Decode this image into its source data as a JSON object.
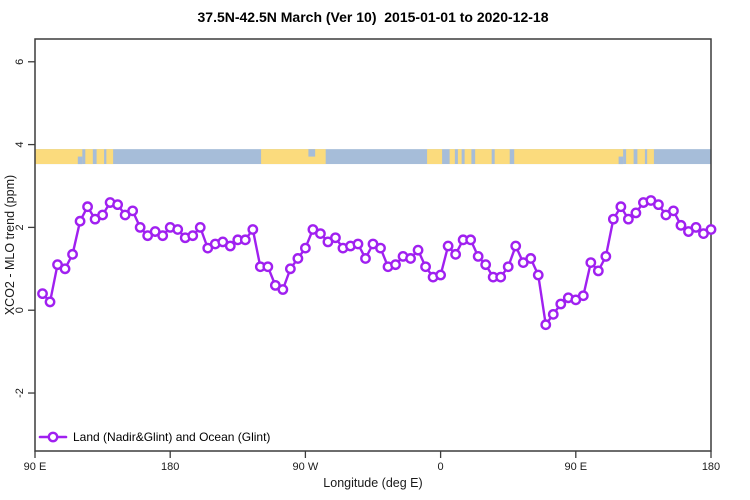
{
  "header": {
    "title": "37.5N-42.5N March (Ver 10)  2015-01-01 to 2020-12-18"
  },
  "axes": {
    "xlabel": "Longitude (deg E)",
    "ylabel": "XCO2 - MLO trend (ppm)"
  },
  "legend": {
    "label": "Land (Nadir&Glint) and Ocean (Glint)"
  },
  "colors": {
    "series_line": "#A020F0",
    "marker_fill": "#FFFFFF",
    "land": "#FBDB7D",
    "ocean": "#A6BDD9",
    "frame": "#3C3C3C",
    "text": "#1A1A1A"
  },
  "chart_data": {
    "type": "line",
    "title": "37.5N-42.5N March (Ver 10)  2015-01-01 to 2020-12-18",
    "xlabel": "Longitude (deg E)",
    "ylabel": "XCO2 - MLO trend (ppm)",
    "xlim": [
      90,
      540
    ],
    "ylim": [
      -3.4,
      6.55
    ],
    "grid": false,
    "legend_position": "inside-bottom-left",
    "xticks": {
      "values": [
        90,
        180,
        270,
        360,
        450,
        540
      ],
      "labels": [
        "90 E",
        "180",
        "90 W",
        "0",
        "90 E",
        "180"
      ]
    },
    "yticks": {
      "values": [
        -2,
        0,
        2,
        4,
        6
      ],
      "labels": [
        "-2",
        "0",
        "2",
        "4",
        "6"
      ]
    },
    "map_band": {
      "description": "land-ocean mask strip for latitude band 37.5N-42.5N",
      "value_range": [
        3.53,
        3.89
      ],
      "land_segments": [
        [
          90,
          121.5
        ],
        [
          123.5,
          128.5
        ],
        [
          131,
          136
        ],
        [
          137.5,
          142
        ],
        [
          240.5,
          283.5
        ],
        [
          351,
          361
        ],
        [
          366,
          369.5
        ],
        [
          371.5,
          374
        ],
        [
          376,
          380.5
        ],
        [
          383,
          394
        ],
        [
          396,
          406
        ],
        [
          409,
          481.5
        ],
        [
          483.5,
          488.5
        ],
        [
          491,
          496
        ],
        [
          497.5,
          502
        ]
      ],
      "ocean_notches": [
        {
          "range": [
            118.5,
            121.5
          ],
          "side": "bottom"
        },
        {
          "range": [
            272,
            276.5
          ],
          "side": "top"
        },
        {
          "range": [
            478.5,
            481.5
          ],
          "side": "bottom"
        }
      ]
    },
    "series": [
      {
        "name": "Land (Nadir&Glint) and Ocean (Glint)",
        "marker": "open-circle",
        "x": [
          95,
          100,
          105,
          110,
          115,
          120,
          125,
          130,
          135,
          140,
          145,
          150,
          155,
          160,
          165,
          170,
          175,
          180,
          185,
          190,
          195,
          200,
          205,
          210,
          215,
          220,
          225,
          230,
          235,
          240,
          245,
          250,
          255,
          260,
          265,
          270,
          275,
          280,
          285,
          290,
          295,
          300,
          305,
          310,
          315,
          320,
          325,
          330,
          335,
          340,
          345,
          350,
          355,
          360,
          365,
          370,
          375,
          380,
          385,
          390,
          395,
          400,
          405,
          410,
          415,
          420,
          425,
          430,
          435,
          440,
          445,
          450,
          455,
          460,
          465,
          470,
          475,
          480,
          485,
          490,
          495,
          500,
          505,
          510,
          515,
          520,
          525,
          530,
          535,
          540
        ],
        "y": [
          0.4,
          0.2,
          1.1,
          1.0,
          1.35,
          2.15,
          2.5,
          2.2,
          2.3,
          2.6,
          2.55,
          2.3,
          2.4,
          2.0,
          1.8,
          1.9,
          1.8,
          2.0,
          1.95,
          1.75,
          1.8,
          2.0,
          1.5,
          1.6,
          1.65,
          1.55,
          1.7,
          1.7,
          1.95,
          1.05,
          1.05,
          0.6,
          0.5,
          1.0,
          1.25,
          1.5,
          1.95,
          1.85,
          1.65,
          1.75,
          1.5,
          1.55,
          1.6,
          1.25,
          1.6,
          1.5,
          1.05,
          1.1,
          1.3,
          1.25,
          1.45,
          1.05,
          0.8,
          0.85,
          1.55,
          1.35,
          1.7,
          1.7,
          1.3,
          1.1,
          0.8,
          0.8,
          1.05,
          1.55,
          1.15,
          1.25,
          0.85,
          -0.35,
          -0.1,
          0.15,
          0.3,
          0.25,
          0.35,
          1.15,
          0.95,
          1.3,
          2.2,
          2.5,
          2.2,
          2.35,
          2.6,
          2.65,
          2.55,
          2.3,
          2.4,
          2.05,
          1.9,
          2.0,
          1.85,
          1.95
        ]
      }
    ]
  }
}
